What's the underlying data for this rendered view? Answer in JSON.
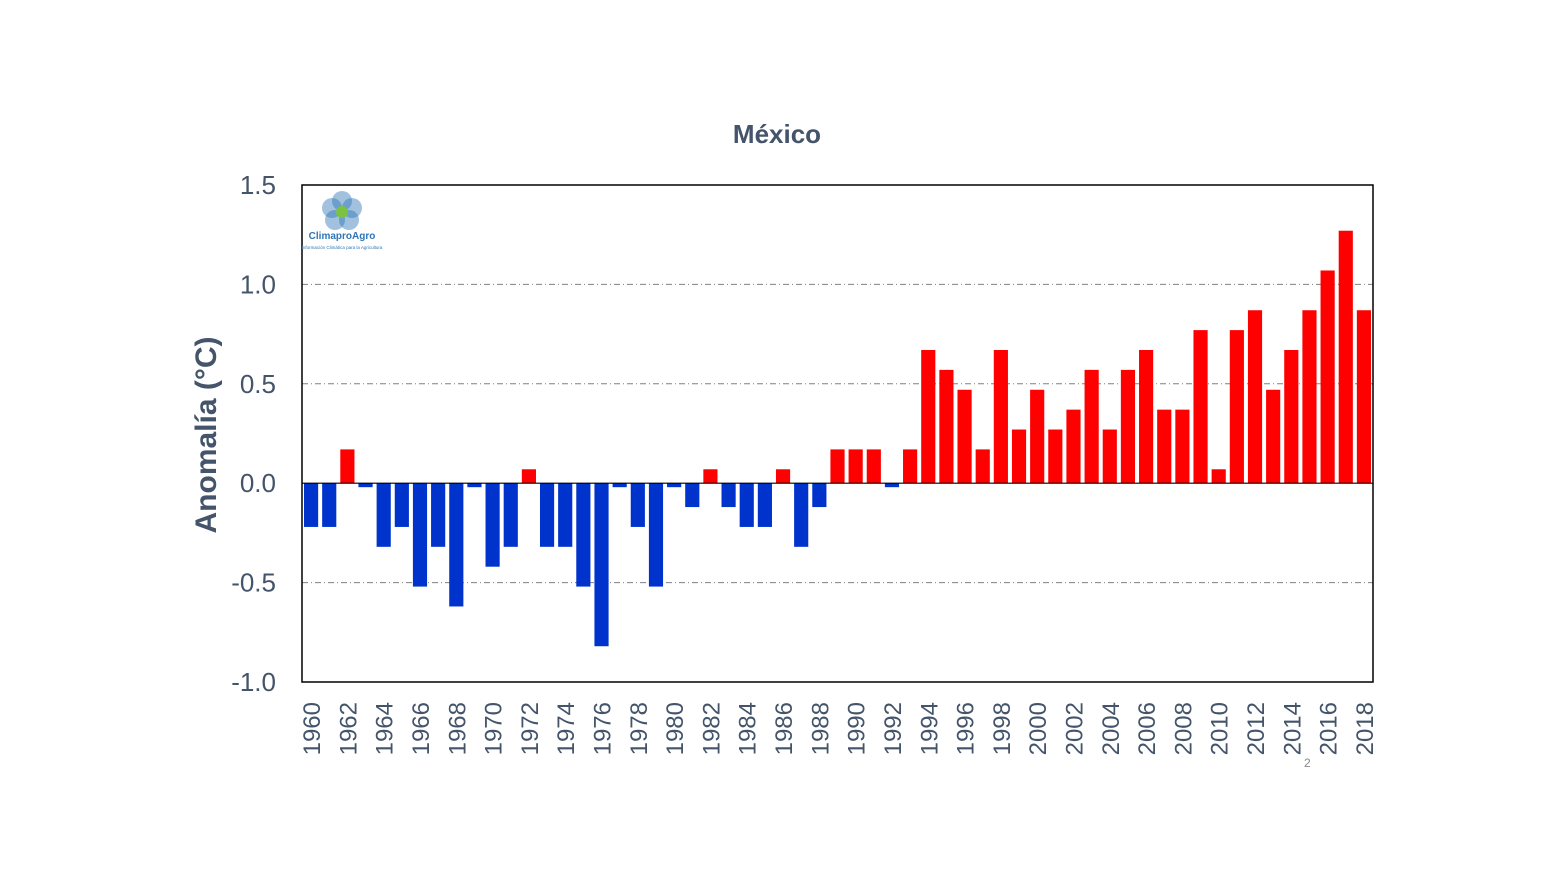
{
  "logo": {
    "name": "ClimaproAgro",
    "tagline": "Información Climática para la Agricultura"
  },
  "page_number": "2",
  "chart_data": {
    "type": "bar",
    "title": "México",
    "xlabel": "",
    "ylabel": "Anomalía (°C)",
    "ylim": [
      -1.0,
      1.5
    ],
    "yticks": [
      "1.5",
      "1.0",
      "0.5",
      "0.0",
      "-0.5",
      "-1.0"
    ],
    "ytick_values": [
      1.5,
      1.0,
      0.5,
      0.0,
      -0.5,
      -1.0
    ],
    "grid": "horizontal dash-dot at 0.5, 1.0, -0.5",
    "colors": {
      "positive": "#ff0000",
      "negative": "#0033cc"
    },
    "categories": [
      1960,
      1961,
      1962,
      1963,
      1964,
      1965,
      1966,
      1967,
      1968,
      1969,
      1970,
      1971,
      1972,
      1973,
      1974,
      1975,
      1976,
      1977,
      1978,
      1979,
      1980,
      1981,
      1982,
      1983,
      1984,
      1985,
      1986,
      1987,
      1988,
      1989,
      1990,
      1991,
      1992,
      1993,
      1994,
      1995,
      1996,
      1997,
      1998,
      1999,
      2000,
      2001,
      2002,
      2003,
      2004,
      2005,
      2006,
      2007,
      2008,
      2009,
      2010,
      2011,
      2012,
      2013,
      2014,
      2015,
      2016,
      2017,
      2018
    ],
    "xtick_labels": [
      "1960",
      "1962",
      "1964",
      "1966",
      "1968",
      "1970",
      "1972",
      "1974",
      "1976",
      "1978",
      "1980",
      "1982",
      "1984",
      "1986",
      "1988",
      "1990",
      "1992",
      "1994",
      "1996",
      "1998",
      "2000",
      "2002",
      "2004",
      "2006",
      "2008",
      "2010",
      "2012",
      "2014",
      "2016",
      "2018"
    ],
    "values": [
      -0.22,
      -0.22,
      0.17,
      -0.02,
      -0.32,
      -0.22,
      -0.52,
      -0.32,
      -0.62,
      -0.02,
      -0.42,
      -0.32,
      0.07,
      -0.32,
      -0.32,
      -0.52,
      -0.82,
      -0.02,
      -0.22,
      -0.52,
      -0.02,
      -0.12,
      0.07,
      -0.12,
      -0.22,
      -0.22,
      0.07,
      -0.32,
      -0.12,
      0.17,
      0.17,
      0.17,
      -0.02,
      0.17,
      0.67,
      0.57,
      0.47,
      0.17,
      0.67,
      0.27,
      0.47,
      0.27,
      0.37,
      0.57,
      0.27,
      0.57,
      0.67,
      0.37,
      0.37,
      0.77,
      0.07,
      0.77,
      0.87,
      0.47,
      0.67,
      0.87,
      1.07,
      1.27,
      0.87
    ]
  }
}
